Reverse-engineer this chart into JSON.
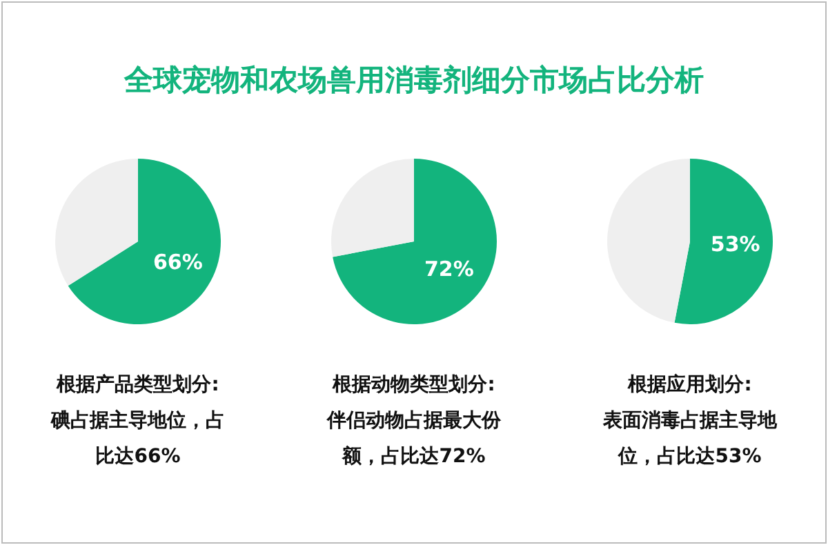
{
  "chart_data": [
    {
      "type": "pie",
      "title": "全球宠物和农场兽用消毒剂细分市场占比分析",
      "categories": [
        null,
        null
      ],
      "values": [
        66,
        34
      ],
      "colors": [
        "#13b47d",
        "#efefef"
      ],
      "value_labels": [
        "66%",
        null
      ],
      "legend": false,
      "annotations": [
        "根据产品类型划分:",
        "碘占据主导地位，占比达66%"
      ]
    },
    {
      "type": "pie",
      "categories": [
        null,
        null
      ],
      "values": [
        72,
        28
      ],
      "colors": [
        "#13b47d",
        "#efefef"
      ],
      "value_labels": [
        "72%",
        null
      ],
      "legend": false,
      "annotations": [
        "根据动物类型划分:",
        "伴侣动物占据最大份额，占比达72%"
      ]
    },
    {
      "type": "pie",
      "categories": [
        null,
        null
      ],
      "values": [
        53,
        47
      ],
      "colors": [
        "#13b47d",
        "#efefef"
      ],
      "value_labels": [
        "53%",
        null
      ],
      "legend": false,
      "annotations": [
        "根据应用划分:",
        "表面消毒占据主导地位，占比达53%"
      ]
    }
  ]
}
